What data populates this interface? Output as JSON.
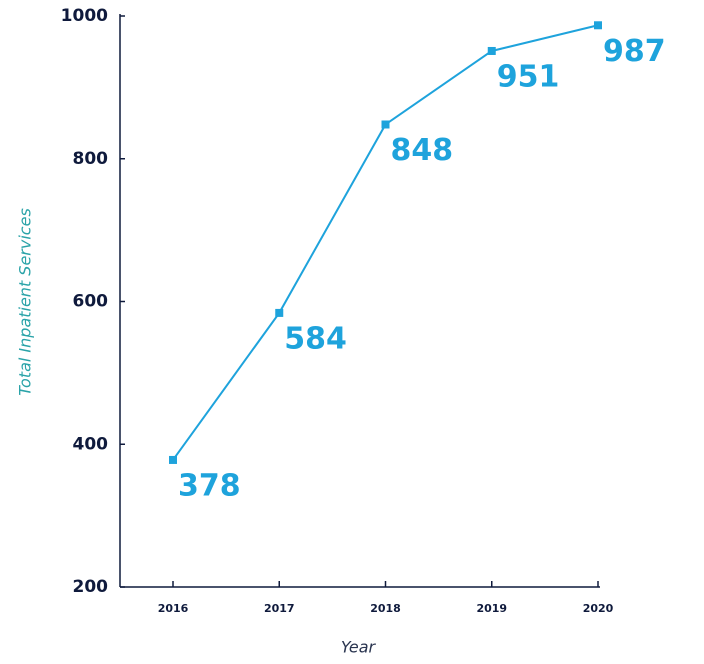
{
  "chart_data": {
    "type": "line",
    "categories": [
      "2016",
      "2017",
      "2018",
      "2019",
      "2020"
    ],
    "series": [
      {
        "name": "Total Inpatient Services",
        "color": "#1ea3dc",
        "values": [
          378,
          584,
          848,
          951,
          987
        ]
      }
    ],
    "xlabel": "Year",
    "ylabel": "Total Inpatient Services",
    "ylim": [
      200,
      1000
    ],
    "yticks": [
      200,
      400,
      600,
      800,
      1000
    ],
    "grid": false
  }
}
